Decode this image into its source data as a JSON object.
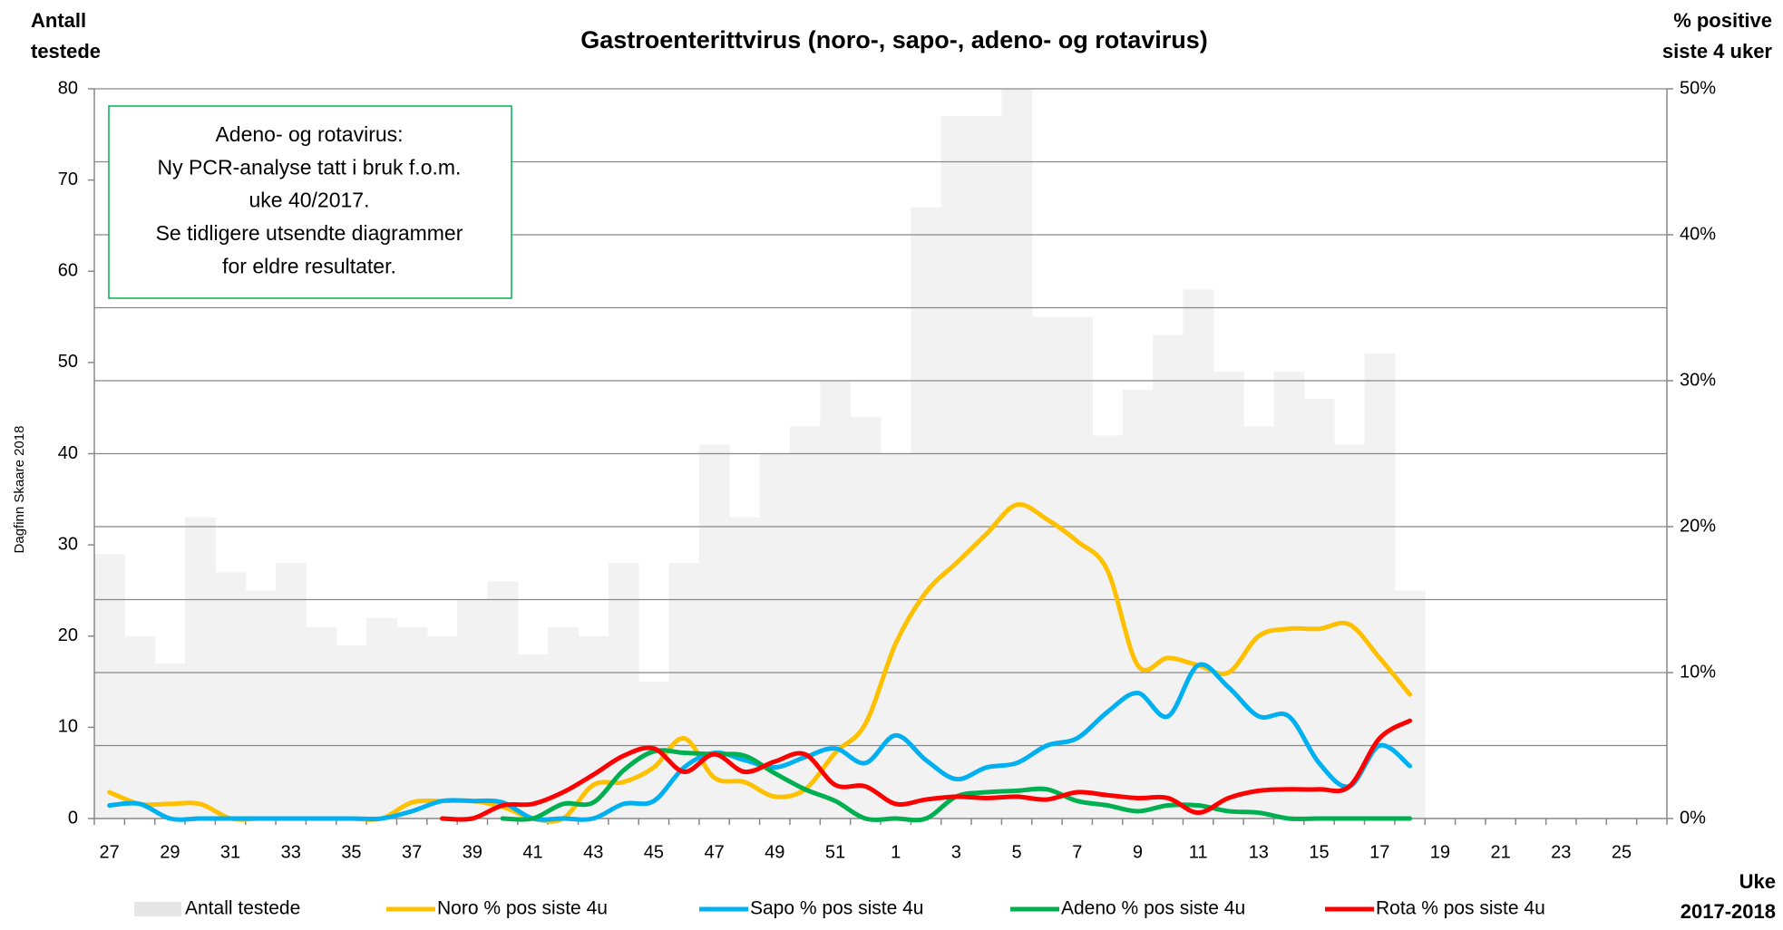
{
  "chart_data": {
    "type": "bar",
    "title": "Gastroenterittvirus (noro-, sapo-, adeno- og rotavirus)",
    "y_label": [
      "Antall",
      "testede"
    ],
    "y2_label": [
      "% positive",
      "siste 4 uker"
    ],
    "x_label": [
      "Uke",
      "2017-2018"
    ],
    "credit": "Dagfinn Skaare 2018",
    "annotation": [
      "Adeno- og rotavirus:",
      "Ny PCR-analyse tatt i bruk f.o.m.",
      "uke 40/2017.",
      "Se tidligere utsendte diagrammer",
      "for eldre resultater."
    ],
    "categories": [
      "27",
      null,
      "29",
      null,
      "31",
      null,
      "33",
      null,
      "35",
      null,
      "37",
      null,
      "39",
      null,
      "41",
      null,
      "43",
      null,
      "45",
      null,
      "47",
      null,
      "49",
      null,
      "51",
      null,
      "1",
      null,
      "3",
      null,
      "5",
      null,
      "7",
      null,
      "9",
      null,
      "11",
      null,
      "13",
      null,
      "15",
      null,
      "17",
      null,
      "19",
      null,
      "21",
      null,
      "23",
      null,
      "25",
      null
    ],
    "series": [
      {
        "name": "Antall testede",
        "type": "bar",
        "color": "#f2f2f2",
        "values": [
          29,
          20,
          17,
          33,
          27,
          25,
          28,
          21,
          19,
          22,
          21,
          20,
          24,
          26,
          18,
          21,
          20,
          28,
          15,
          28,
          41,
          33,
          40,
          43,
          48,
          44,
          40,
          67,
          77,
          77,
          80,
          55,
          55,
          42,
          47,
          53,
          58,
          49,
          43,
          49,
          46,
          41,
          51,
          25,
          null,
          null,
          null,
          null,
          null,
          null,
          null,
          null
        ]
      },
      {
        "name": "Noro % pos siste 4u",
        "type": "line",
        "axis": "y2",
        "color": "#ffc000",
        "values": [
          1.8,
          1,
          1,
          1,
          0,
          0,
          0,
          0,
          0,
          0,
          1.1,
          1.2,
          1.2,
          0.8,
          0,
          0,
          2.3,
          2.5,
          3.5,
          5.5,
          2.8,
          2.5,
          1.5,
          2,
          4.5,
          6.5,
          12,
          15.5,
          17.5,
          19.5,
          21.5,
          20.5,
          19,
          17,
          10.5,
          11,
          10.5,
          10,
          12.5,
          13,
          13,
          13.3,
          11,
          8.5,
          null,
          null,
          null,
          null,
          null,
          null,
          null,
          null
        ]
      },
      {
        "name": "Sapo % pos siste 4u",
        "type": "line",
        "axis": "y2",
        "color": "#00b0f0",
        "values": [
          0.9,
          1,
          0,
          0,
          0,
          0,
          0,
          0,
          0,
          0,
          0.5,
          1.2,
          1.2,
          1.1,
          0,
          0,
          0,
          1,
          1.2,
          3.5,
          4.5,
          4,
          3.5,
          4.2,
          4.8,
          3.8,
          5.7,
          4,
          2.7,
          3.5,
          3.8,
          5,
          5.5,
          7.3,
          8.6,
          7,
          10.5,
          9,
          7,
          7,
          3.8,
          2.2,
          5,
          3.6,
          null,
          null,
          null,
          null,
          null,
          null,
          null,
          null
        ]
      },
      {
        "name": "Adeno % pos siste 4u",
        "type": "line",
        "axis": "y2",
        "color": "#00b050",
        "values": [
          null,
          null,
          null,
          null,
          null,
          null,
          null,
          null,
          null,
          null,
          null,
          null,
          null,
          0,
          0,
          1,
          1.1,
          3.3,
          4.6,
          4.5,
          4.4,
          4.3,
          3.1,
          2,
          1.2,
          0,
          0,
          0,
          1.5,
          1.8,
          1.9,
          2,
          1.2,
          0.9,
          0.5,
          0.9,
          0.9,
          0.5,
          0.4,
          0,
          0,
          0,
          0,
          0,
          null,
          null,
          null,
          null,
          null,
          null,
          null,
          null
        ]
      },
      {
        "name": "Rota % pos siste 4u",
        "type": "line",
        "axis": "y2",
        "color": "#ff0000",
        "values": [
          null,
          null,
          null,
          null,
          null,
          null,
          null,
          null,
          null,
          null,
          null,
          0,
          0,
          0.9,
          1,
          1.8,
          3,
          4.3,
          4.8,
          3.2,
          4.4,
          3.2,
          3.9,
          4.4,
          2.3,
          2.2,
          1,
          1.3,
          1.5,
          1.4,
          1.5,
          1.3,
          1.8,
          1.6,
          1.4,
          1.4,
          0.4,
          1.4,
          1.9,
          2,
          2,
          2.2,
          5.5,
          6.7,
          null,
          null,
          null,
          null,
          null,
          null,
          null,
          null
        ]
      }
    ],
    "ylim": [
      0,
      80
    ],
    "yticks": [
      0,
      10,
      20,
      30,
      40,
      50,
      60,
      70,
      80
    ],
    "y2lim": [
      0,
      50
    ],
    "y2ticks": [
      {
        "value": 0,
        "label": "0%"
      },
      {
        "value": 10,
        "label": "10%"
      },
      {
        "value": 20,
        "label": "20%"
      },
      {
        "value": 30,
        "label": "30%"
      },
      {
        "value": 40,
        "label": "40%"
      },
      {
        "value": 50,
        "label": "50%"
      }
    ],
    "y2grid": [
      5,
      10,
      15,
      20,
      25,
      30,
      35,
      40,
      45,
      50
    ],
    "grid": true,
    "smooth": true
  }
}
